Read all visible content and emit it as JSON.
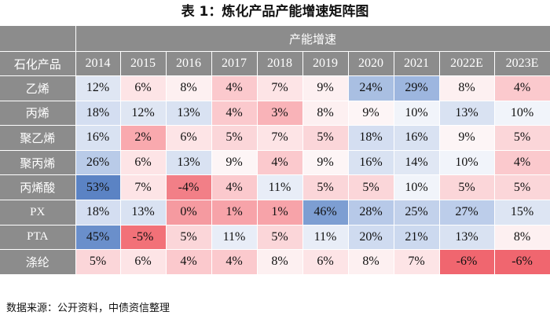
{
  "title": "表 1：炼化产品产能增速矩阵图",
  "header": {
    "row_label": "石化产品",
    "group_label": "产能增速",
    "years": [
      "2014",
      "2015",
      "2016",
      "2017",
      "2018",
      "2019",
      "2020",
      "2021",
      "2022E",
      "2023E"
    ]
  },
  "rows": [
    {
      "name": "乙烯",
      "values": [
        "12%",
        "6%",
        "8%",
        "4%",
        "7%",
        "9%",
        "24%",
        "29%",
        "8%",
        "4%"
      ]
    },
    {
      "name": "丙烯",
      "values": [
        "18%",
        "12%",
        "13%",
        "4%",
        "3%",
        "8%",
        "9%",
        "10%",
        "13%",
        "10%"
      ]
    },
    {
      "name": "聚乙烯",
      "values": [
        "16%",
        "2%",
        "6%",
        "5%",
        "7%",
        "5%",
        "18%",
        "16%",
        "9%",
        "5%"
      ]
    },
    {
      "name": "聚丙烯",
      "values": [
        "26%",
        "6%",
        "13%",
        "9%",
        "4%",
        "9%",
        "16%",
        "14%",
        "10%",
        "4%"
      ]
    },
    {
      "name": "丙烯酸",
      "values": [
        "53%",
        "7%",
        "-4%",
        "4%",
        "11%",
        "5%",
        "5%",
        "10%",
        "5%",
        "5%"
      ]
    },
    {
      "name": "PX",
      "values": [
        "18%",
        "13%",
        "0%",
        "1%",
        "1%",
        "46%",
        "28%",
        "25%",
        "27%",
        "15%"
      ]
    },
    {
      "name": "PTA",
      "values": [
        "45%",
        "-5%",
        "5%",
        "11%",
        "5%",
        "11%",
        "20%",
        "21%",
        "13%",
        "8%"
      ]
    },
    {
      "name": "涤纶",
      "values": [
        "5%",
        "6%",
        "4%",
        "4%",
        "8%",
        "6%",
        "8%",
        "7%",
        "-6%",
        "-6%"
      ]
    }
  ],
  "colors": [
    [
      "#dfe6f3",
      "#fde4e6",
      "#fdf0f1",
      "#fbc9cd",
      "#fde4e6",
      "#fdf0f1",
      "#a9bfe2",
      "#9db6df",
      "#fdf0f1",
      "#fbc9cd"
    ],
    [
      "#d4def1",
      "#dfe6f3",
      "#d9e2f2",
      "#fbc9cd",
      "#f9b3b8",
      "#fdf0f1",
      "#fdf5f6",
      "#f1f4fa",
      "#d9e2f2",
      "#f1f4fa"
    ],
    [
      "#d9e2f2",
      "#f9a9ae",
      "#fde4e6",
      "#fbd6d9",
      "#fde4e6",
      "#fbd6d9",
      "#d4def1",
      "#d9e2f2",
      "#fdf5f6",
      "#fbd6d9"
    ],
    [
      "#b9cbe8",
      "#fde4e6",
      "#d9e2f2",
      "#fdf5f6",
      "#fbc9cd",
      "#fdf5f6",
      "#d9e2f2",
      "#e0e7f4",
      "#f1f4fa",
      "#fbc9cd"
    ],
    [
      "#5b83c4",
      "#fde4e6",
      "#f27f87",
      "#fbc9cd",
      "#e8edf7",
      "#fbd6d9",
      "#fbd6d9",
      "#f1f4fa",
      "#fbd6d9",
      "#fbd6d9"
    ],
    [
      "#d4def1",
      "#d9e2f2",
      "#f59aa0",
      "#f7a3a9",
      "#f7a3a9",
      "#7d9ed2",
      "#b7c9e8",
      "#c2d1eb",
      "#bccdea",
      "#dde5f3"
    ],
    [
      "#6a8fcb",
      "#f27178",
      "#fbd6d9",
      "#e8edf7",
      "#fbd6d9",
      "#e8edf7",
      "#cfdbf0",
      "#ccd9ef",
      "#d9e2f2",
      "#fdf0f1"
    ],
    [
      "#fbd6d9",
      "#fde4e6",
      "#fbc9cd",
      "#fbc9cd",
      "#fdf0f1",
      "#fde4e6",
      "#fdf0f1",
      "#fde4e6",
      "#f0666f",
      "#f0666f"
    ]
  ],
  "source": "数据来源：公开资料，中债资信整理"
}
